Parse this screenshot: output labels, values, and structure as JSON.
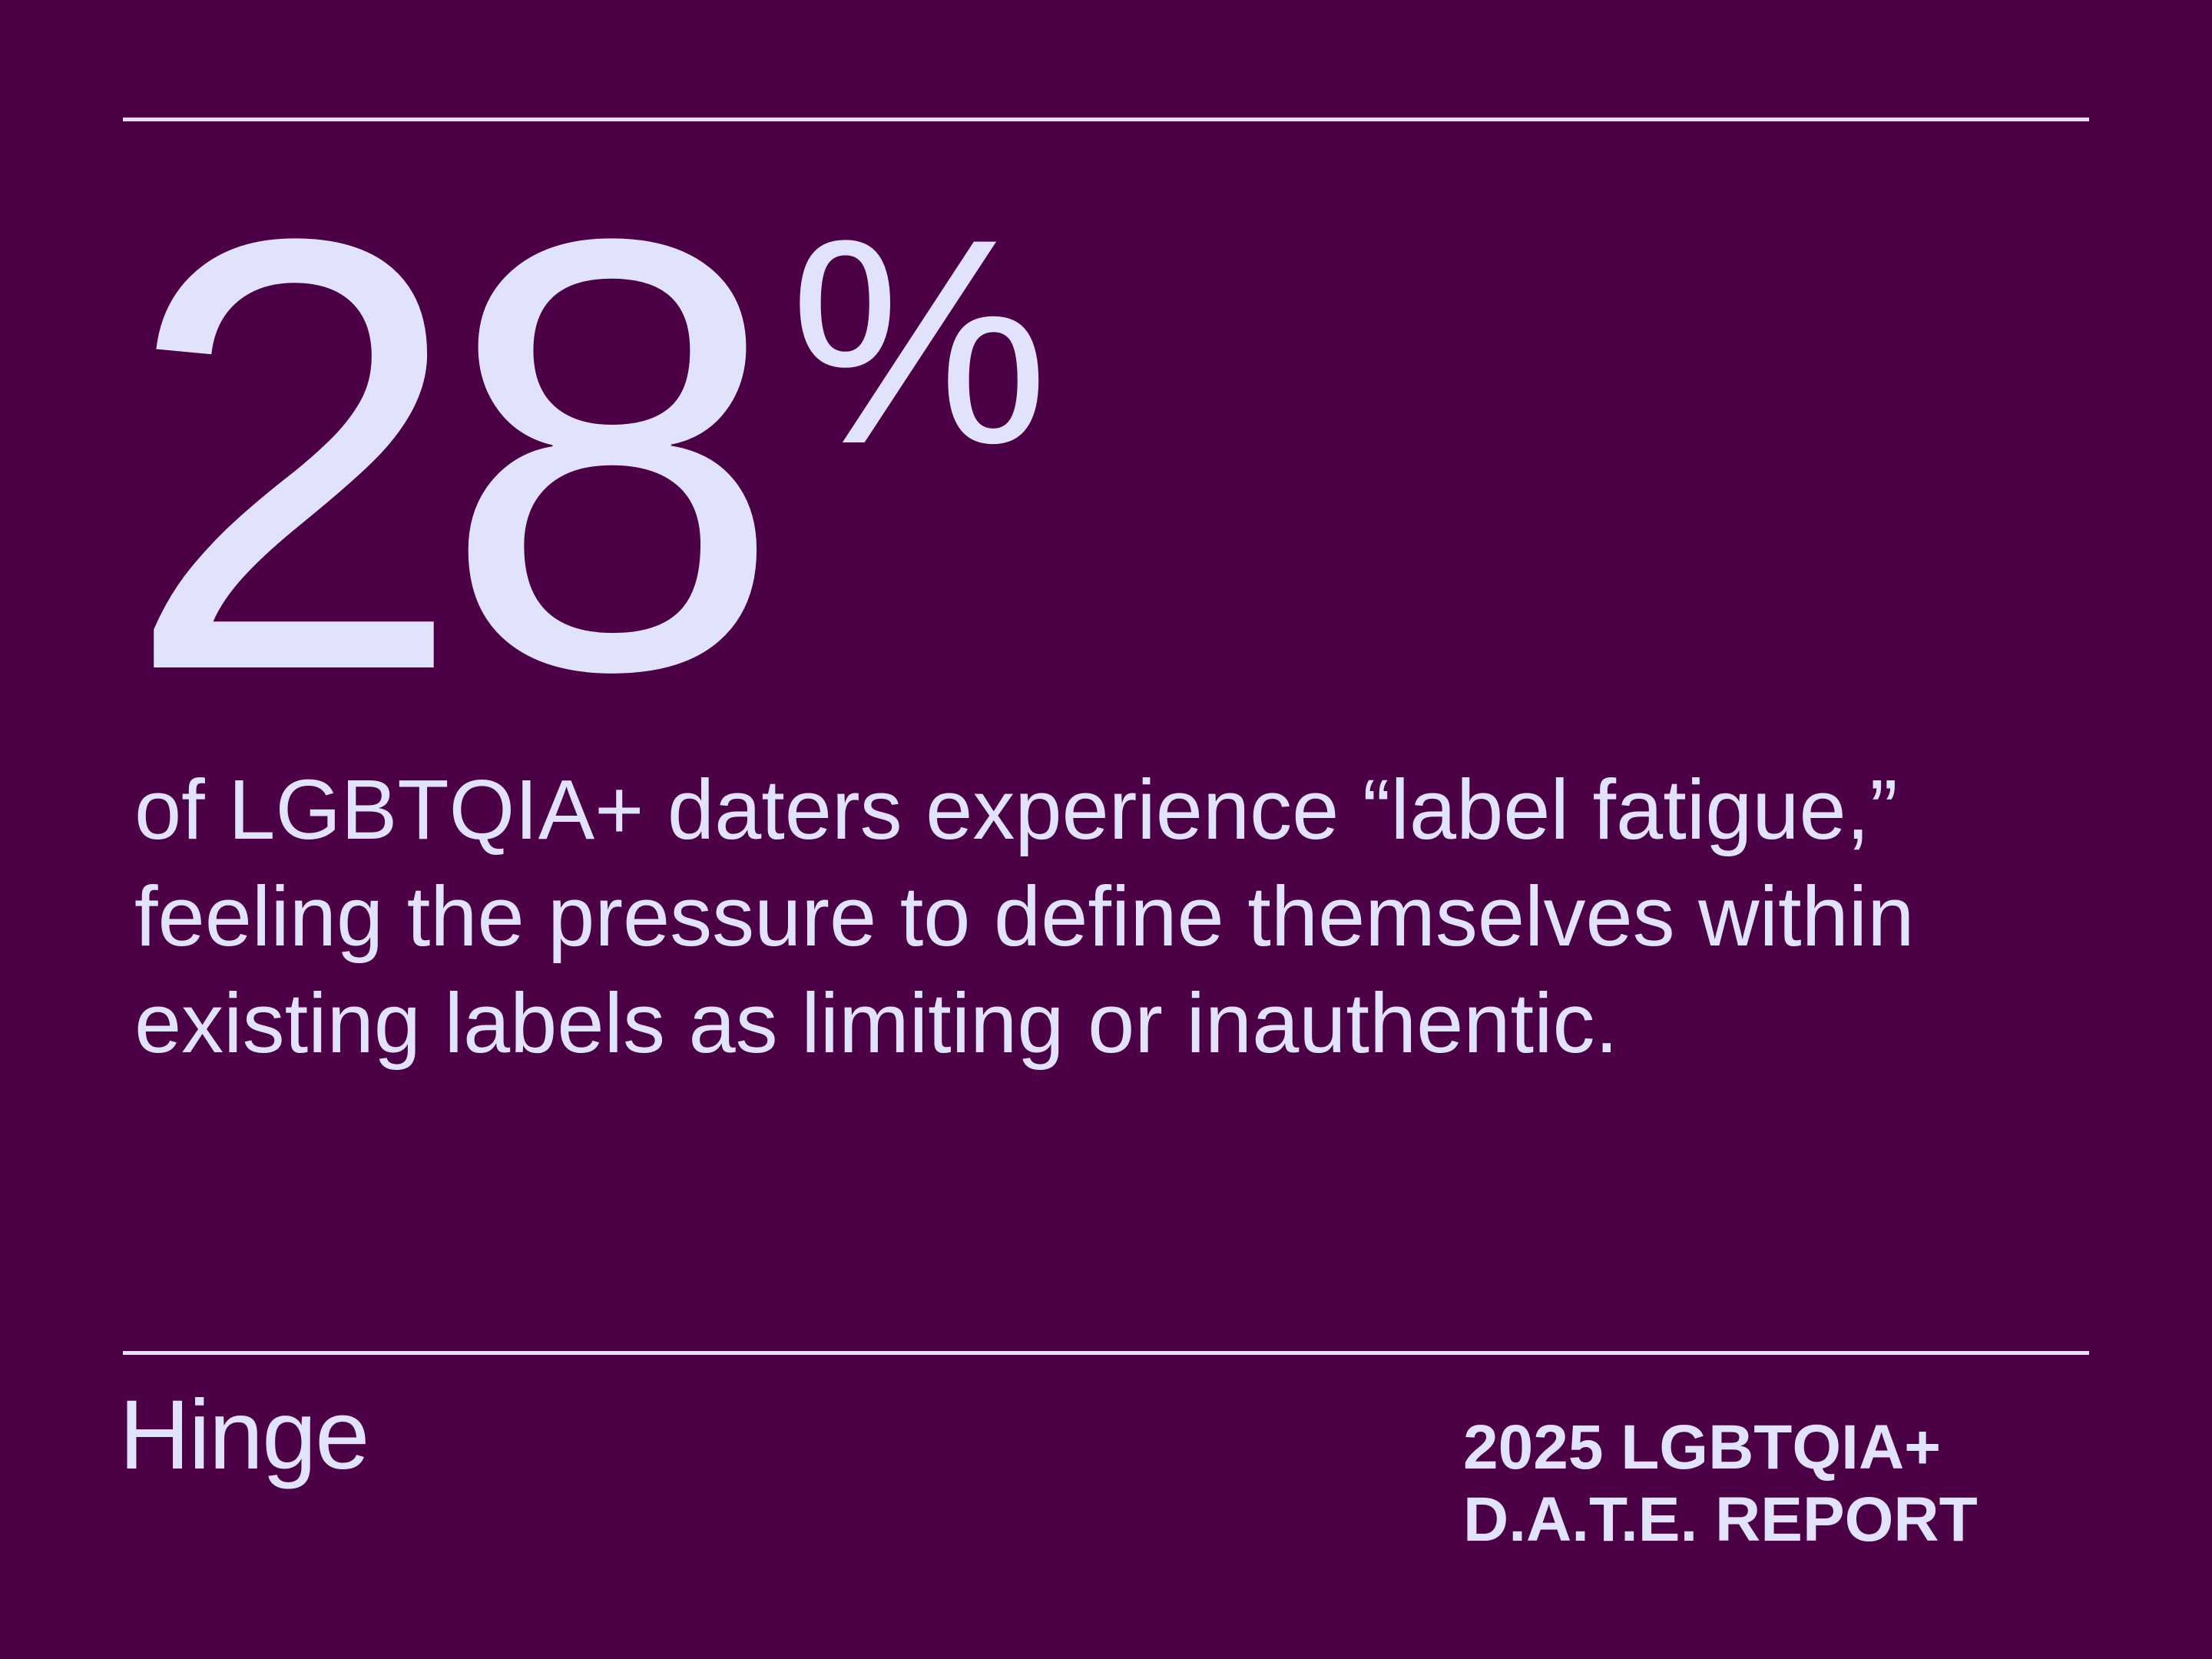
{
  "stat": {
    "number": "28",
    "unit": "%"
  },
  "statement": "of LGBTQIA+ daters experience “label fatigue,” feeling the pressure to define themselves within existing labels as limiting or inauthentic.",
  "brand": {
    "logo_text": "Hinge"
  },
  "report": {
    "line1": "2025 LGBTQIA+",
    "line2": "D.A.T.E. REPORT"
  },
  "colors": {
    "background": "#4c0045",
    "foreground": "#e0e3fb"
  }
}
